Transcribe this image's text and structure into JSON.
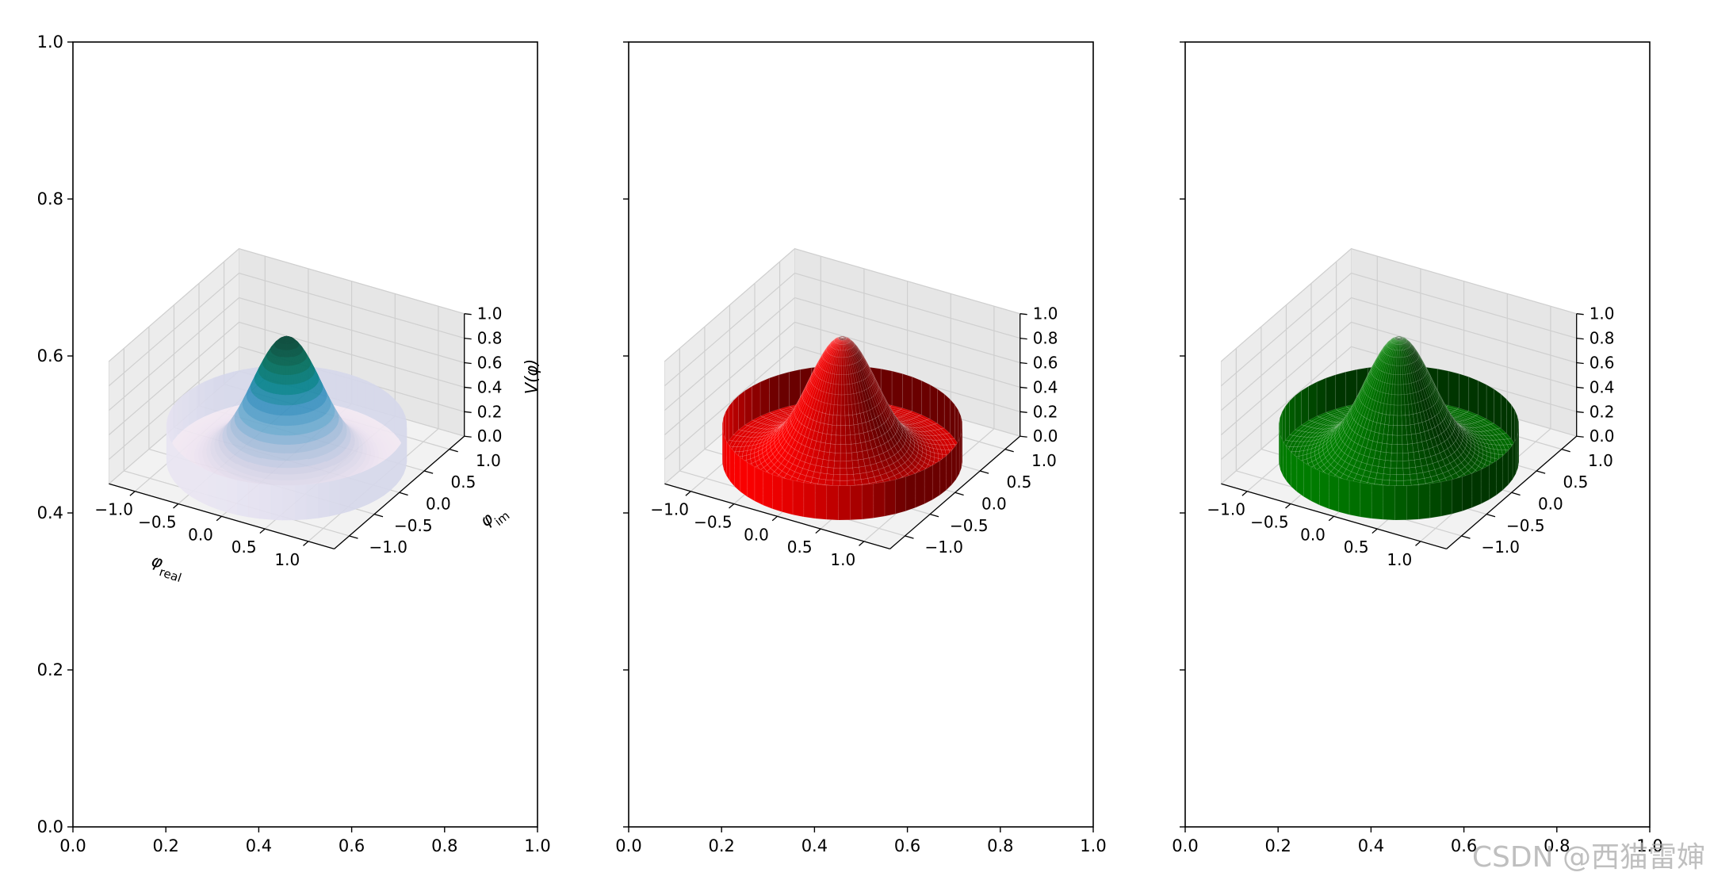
{
  "chart_data": [
    {
      "type": "surface",
      "surface_color": "PuBuGn colormap",
      "function": "V(phi) = exp(-4*(phi_real^2 + phi_im^2)) for r <= 1.2, opacity 0.7",
      "xlabel": "φreal",
      "ylabel": "φim",
      "zlabel": "V(φ)",
      "x_ticks": [
        "−1.0",
        "−0.5",
        "0.0",
        "0.5",
        "1.0"
      ],
      "y_ticks": [
        "−1.0",
        "−0.5",
        "0.0",
        "0.5",
        "1.0"
      ],
      "z_ticks": [
        "0.0",
        "0.2",
        "0.4",
        "0.6",
        "0.8",
        "1.0"
      ],
      "xlim": [
        -1.2,
        1.2
      ],
      "ylim": [
        -1.2,
        1.2
      ],
      "zlim": [
        0,
        1
      ],
      "outer_xticks": [
        "0.0",
        "0.2",
        "0.4",
        "0.6",
        "0.8",
        "1.0"
      ],
      "outer_yticks": [
        "0.0",
        "0.2",
        "0.4",
        "0.6",
        "0.8",
        "1.0"
      ]
    },
    {
      "type": "surface",
      "surface_color": "#ff0000",
      "function": "V(phi) = exp(-4*(phi_real^2 + phi_im^2)) for r <= 1.2",
      "x_ticks": [
        "−1.0",
        "−0.5",
        "0.0",
        "0.5",
        "1.0"
      ],
      "y_ticks": [
        "−1.0",
        "−0.5",
        "0.0",
        "0.5",
        "1.0"
      ],
      "z_ticks": [
        "0.0",
        "0.2",
        "0.4",
        "0.6",
        "0.8",
        "1.0"
      ],
      "xlim": [
        -1.2,
        1.2
      ],
      "ylim": [
        -1.2,
        1.2
      ],
      "zlim": [
        0,
        1
      ],
      "outer_xticks": [
        "0.0",
        "0.2",
        "0.4",
        "0.6",
        "0.8",
        "1.0"
      ]
    },
    {
      "type": "surface",
      "surface_color": "#008000",
      "function": "V(phi) = exp(-4*(phi_real^2 + phi_im^2)) for r <= 1.2",
      "x_ticks": [
        "−1.0",
        "−0.5",
        "0.0",
        "0.5",
        "1.0"
      ],
      "y_ticks": [
        "−1.0",
        "−0.5",
        "0.0",
        "0.5",
        "1.0"
      ],
      "z_ticks": [
        "0.0",
        "0.2",
        "0.4",
        "0.6",
        "0.8",
        "1.0"
      ],
      "xlim": [
        -1.2,
        1.2
      ],
      "ylim": [
        -1.2,
        1.2
      ],
      "zlim": [
        0,
        1
      ],
      "outer_xticks": [
        "0.0",
        "0.2",
        "0.4",
        "0.6",
        "0.8",
        "1.0"
      ]
    }
  ],
  "watermark": "CSDN @西猫雷婶"
}
